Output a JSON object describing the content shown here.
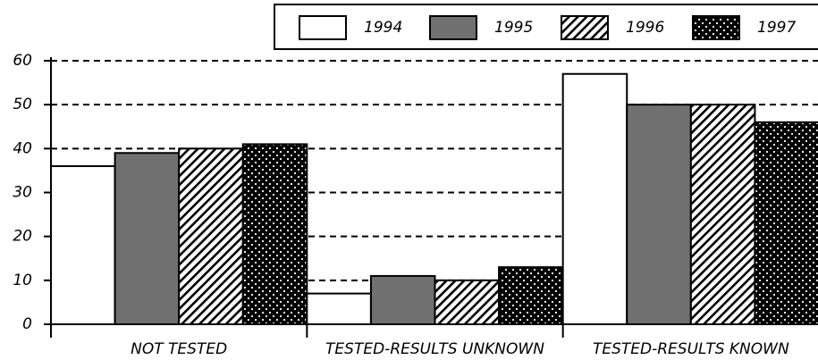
{
  "chart_data": {
    "type": "bar",
    "categories": [
      "NOT TESTED",
      "TESTED-RESULTS UNKNOWN",
      "TESTED-RESULTS KNOWN"
    ],
    "series": [
      {
        "name": "1994",
        "color": "#ffffff",
        "pattern": "solid",
        "values": [
          36,
          7,
          57
        ]
      },
      {
        "name": "1995",
        "color": "#707070",
        "pattern": "solid",
        "values": [
          39,
          11,
          50
        ]
      },
      {
        "name": "1996",
        "color": "#000000",
        "pattern": "hatch",
        "values": [
          40,
          10,
          50
        ]
      },
      {
        "name": "1997",
        "color": "#000000",
        "pattern": "dots",
        "values": [
          41,
          13,
          46
        ]
      }
    ],
    "ylim": [
      0,
      60
    ],
    "yticks": [
      0,
      10,
      20,
      30,
      40,
      50,
      60
    ],
    "grid": true,
    "legend": "top-right"
  }
}
